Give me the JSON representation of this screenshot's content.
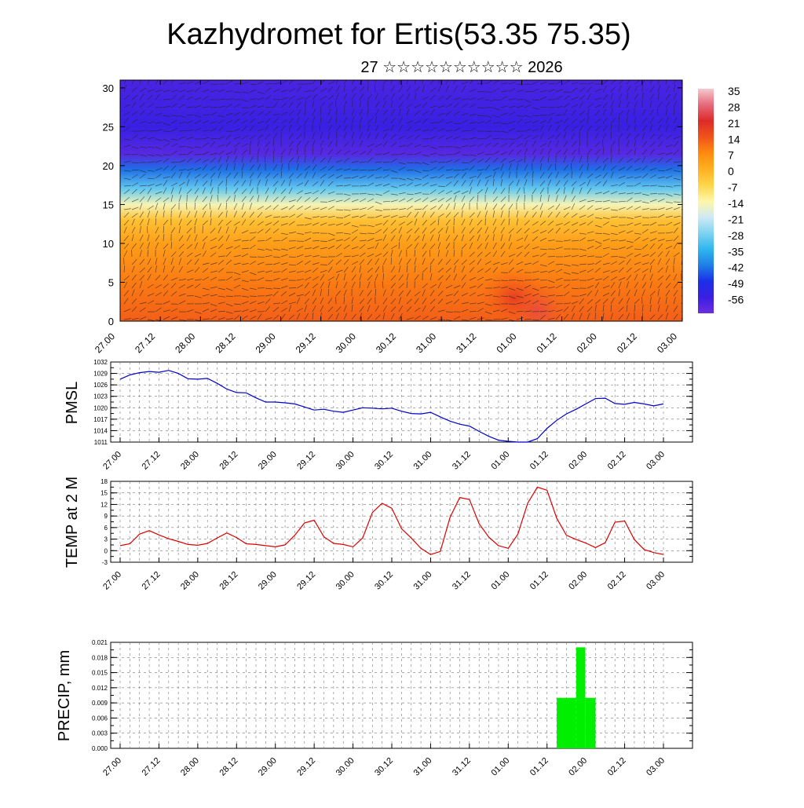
{
  "header": {
    "title": "Kazhydromet for Ertis(53.35 75.35)",
    "subtitle": "27 ☆☆☆☆☆☆☆☆☆☆ 2026"
  },
  "time_ticks": [
    "27.00",
    "27.12",
    "28.00",
    "28.12",
    "29.00",
    "29.12",
    "30.00",
    "30.12",
    "31.00",
    "31.12",
    "01.00",
    "01.12",
    "02.00",
    "02.12",
    "03.00"
  ],
  "chart_data": [
    {
      "type": "heatmap",
      "name": "vertical-profile",
      "x_ticks": [
        "27.00",
        "27.12",
        "28.00",
        "28.12",
        "29.00",
        "29.12",
        "30.00",
        "30.12",
        "31.00",
        "31.12",
        "01.00",
        "01.12",
        "02.00",
        "02.12",
        "03.00"
      ],
      "y_ticks": [
        "0",
        "5",
        "10",
        "15",
        "20",
        "25",
        "30"
      ],
      "ylim": [
        0,
        31
      ],
      "colorbar_labels": [
        "35",
        "28",
        "21",
        "14",
        "7",
        "0",
        "-7",
        "-14",
        "-21",
        "-28",
        "-35",
        "-42",
        "-49",
        "-56"
      ],
      "colorbar_range": [
        -63,
        42
      ],
      "colorbar_colors": [
        "#6b2ee0",
        "#3a1fe3",
        "#1b2fe8",
        "#1f7fe6",
        "#2fb6ee",
        "#7fd3f0",
        "#cfeaf5",
        "#fff6a8",
        "#ffd54a",
        "#ffb020",
        "#ff8a10",
        "#f0531a",
        "#dd2a2a",
        "#e66a7a",
        "#f6c8d0"
      ],
      "row_values_by_height": [
        {
          "y": 0,
          "value": 18
        },
        {
          "y": 5,
          "value": 14
        },
        {
          "y": 10,
          "value": 8
        },
        {
          "y": 13,
          "value": 1
        },
        {
          "y": 15,
          "value": -12
        },
        {
          "y": 17,
          "value": -28
        },
        {
          "y": 19.5,
          "value": -42
        },
        {
          "y": 21.5,
          "value": -60
        },
        {
          "y": 25,
          "value": -55
        },
        {
          "y": 31,
          "value": -58
        }
      ],
      "warm_spots": [
        {
          "x": 10.35,
          "y": 1.5,
          "value": 30
        },
        {
          "x": 9.8,
          "y": 3,
          "value": 24
        }
      ]
    },
    {
      "type": "line",
      "name": "pmsl",
      "ylabel": "PMSL",
      "color": "#0000cc",
      "y_ticks": [
        1011,
        1014,
        1017,
        1020,
        1023,
        1026,
        1029,
        1032
      ],
      "ylim": [
        1011,
        1032
      ],
      "x_ticks": [
        "27.00",
        "27.12",
        "28.00",
        "28.12",
        "29.00",
        "29.12",
        "30.00",
        "30.12",
        "31.00",
        "31.12",
        "01.00",
        "01.12",
        "02.00",
        "02.12",
        "03.00"
      ],
      "values": [
        1027.5,
        1028.6,
        1029.2,
        1029.5,
        1029.3,
        1029.8,
        1029.0,
        1027.6,
        1027.5,
        1027.7,
        1026.4,
        1024.9,
        1024.0,
        1023.9,
        1022.6,
        1021.5,
        1021.5,
        1021.3,
        1021.0,
        1020.2,
        1019.4,
        1019.6,
        1019.1,
        1018.8,
        1019.4,
        1020.0,
        1019.9,
        1019.7,
        1019.9,
        1019.1,
        1018.5,
        1018.4,
        1018.8,
        1017.6,
        1016.5,
        1015.7,
        1015.2,
        1013.8,
        1012.5,
        1011.5,
        1011.2,
        1011.0,
        1011.0,
        1011.9,
        1014.6,
        1016.7,
        1018.4,
        1019.6,
        1021.0,
        1022.4,
        1022.5,
        1021.1,
        1020.9,
        1021.4,
        1021.0,
        1020.5,
        1021.0
      ]
    },
    {
      "type": "line",
      "name": "temp-2m",
      "ylabel": "TEMP at 2 M",
      "color": "#dd0000",
      "y_ticks": [
        -3,
        0,
        3,
        6,
        9,
        12,
        15,
        18
      ],
      "ylim": [
        -3,
        18
      ],
      "x_ticks": [
        "27.00",
        "27.12",
        "28.00",
        "28.12",
        "29.00",
        "29.12",
        "30.00",
        "30.12",
        "31.00",
        "31.12",
        "01.00",
        "01.12",
        "02.00",
        "02.12",
        "03.00"
      ],
      "values": [
        1.3,
        1.8,
        4.3,
        5.2,
        4.1,
        3.1,
        2.4,
        1.6,
        1.4,
        1.9,
        3.3,
        4.6,
        3.4,
        1.8,
        1.6,
        1.3,
        1.0,
        1.5,
        4.0,
        7.2,
        7.9,
        3.6,
        1.9,
        1.6,
        1.0,
        3.3,
        9.9,
        12.3,
        11.0,
        5.7,
        3.3,
        0.6,
        -1.0,
        -0.2,
        8.6,
        13.8,
        13.3,
        7.0,
        3.5,
        1.3,
        0.6,
        4.3,
        12.3,
        16.5,
        15.7,
        8.4,
        4.0,
        2.9,
        2.0,
        0.8,
        2.1,
        7.4,
        7.7,
        2.9,
        0.3,
        -0.5,
        -1.0
      ]
    },
    {
      "type": "bar",
      "name": "precip",
      "ylabel": "PRECIP, mm",
      "color": "#00ee00",
      "y_ticks": [
        "0.000",
        "0.003",
        "0.006",
        "0.009",
        "0.012",
        "0.015",
        "0.018",
        "0.021"
      ],
      "ylim": [
        0,
        0.021
      ],
      "x_ticks": [
        "27.00",
        "27.12",
        "28.00",
        "28.12",
        "29.00",
        "29.12",
        "30.00",
        "30.12",
        "31.00",
        "31.12",
        "01.00",
        "01.12",
        "02.00",
        "02.12",
        "03.00"
      ],
      "bars": [
        {
          "x_start": 11.25,
          "x_end": 11.75,
          "value": 0.01
        },
        {
          "x_start": 11.75,
          "x_end": 11.98,
          "value": 0.02
        },
        {
          "x_start": 11.98,
          "x_end": 12.25,
          "value": 0.01
        }
      ]
    }
  ]
}
